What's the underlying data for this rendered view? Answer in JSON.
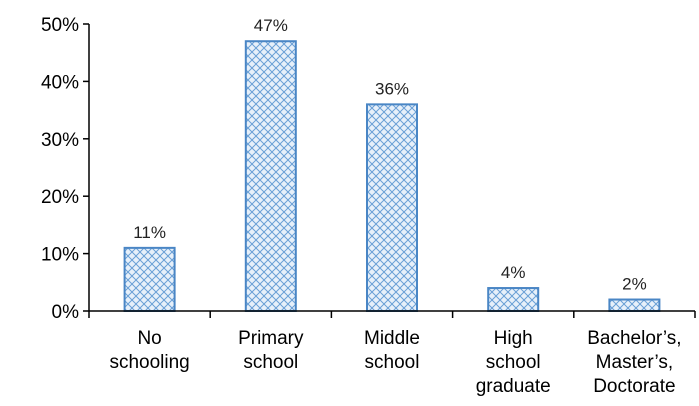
{
  "chart_data": {
    "type": "bar",
    "categories": [
      "No schooling",
      "Primary school",
      "Middle school",
      "High school graduate",
      "Bachelor’s, Master’s, Doctorate"
    ],
    "category_lines": [
      [
        "No",
        "schooling"
      ],
      [
        "Primary",
        "school"
      ],
      [
        "Middle",
        "school"
      ],
      [
        "High",
        "school",
        "graduate"
      ],
      [
        "Bachelor’s,",
        "Master’s,",
        "Doctorate"
      ]
    ],
    "values": [
      11,
      47,
      36,
      4,
      2
    ],
    "data_labels": [
      "11%",
      "47%",
      "36%",
      "4%",
      "2%"
    ],
    "y_ticks": [
      {
        "value": 0,
        "label": "0%"
      },
      {
        "value": 10,
        "label": "10%"
      },
      {
        "value": 20,
        "label": "20%"
      },
      {
        "value": 30,
        "label": "30%"
      },
      {
        "value": 40,
        "label": "40%"
      },
      {
        "value": 50,
        "label": "50%"
      }
    ],
    "ylim": [
      0,
      50
    ],
    "title": "",
    "xlabel": "",
    "ylabel": "",
    "grid": false,
    "legend": "none",
    "colors": {
      "bar_stroke": "#4a86c5",
      "bar_fill": "#e7f0fa",
      "hatch": "#6aa0d6",
      "axis": "#000000"
    }
  }
}
